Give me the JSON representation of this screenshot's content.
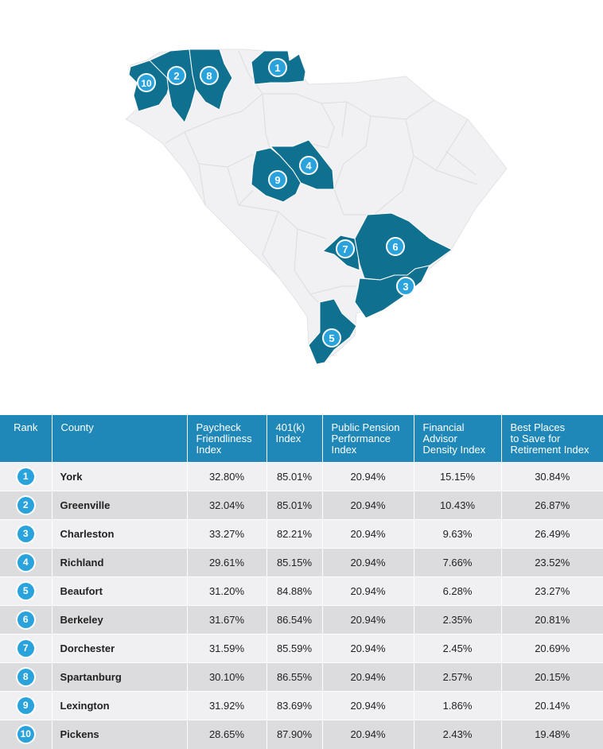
{
  "colors": {
    "state_fill": "#f1f1f3",
    "county_border": "#d9d9de",
    "highlight_fill": "#10708f",
    "badge_fill": "#2aa3dd",
    "header_bg": "#1f88b9"
  },
  "map": {
    "state": "South Carolina",
    "highlighted_counties": [
      {
        "rank": "1",
        "county": "York"
      },
      {
        "rank": "2",
        "county": "Greenville"
      },
      {
        "rank": "3",
        "county": "Charleston"
      },
      {
        "rank": "4",
        "county": "Richland"
      },
      {
        "rank": "5",
        "county": "Beaufort"
      },
      {
        "rank": "6",
        "county": "Berkeley"
      },
      {
        "rank": "7",
        "county": "Dorchester"
      },
      {
        "rank": "8",
        "county": "Spartanburg"
      },
      {
        "rank": "9",
        "county": "Lexington"
      },
      {
        "rank": "10",
        "county": "Pickens"
      }
    ]
  },
  "table": {
    "headers": [
      "Rank",
      "County",
      "Paycheck\nFriendliness\nIndex",
      "401(k)\nIndex",
      "Public Pension\nPerformance\nIndex",
      "Financial\nAdvisor\nDensity Index",
      "Best Places\nto Save for\nRetirement Index"
    ],
    "rows": [
      {
        "rank": "1",
        "county": "York",
        "paycheck": "32.80%",
        "k401": "85.01%",
        "pension": "20.94%",
        "advisor": "15.15%",
        "best": "30.84%"
      },
      {
        "rank": "2",
        "county": "Greenville",
        "paycheck": "32.04%",
        "k401": "85.01%",
        "pension": "20.94%",
        "advisor": "10.43%",
        "best": "26.87%"
      },
      {
        "rank": "3",
        "county": "Charleston",
        "paycheck": "33.27%",
        "k401": "82.21%",
        "pension": "20.94%",
        "advisor": "9.63%",
        "best": "26.49%"
      },
      {
        "rank": "4",
        "county": "Richland",
        "paycheck": "29.61%",
        "k401": "85.15%",
        "pension": "20.94%",
        "advisor": "7.66%",
        "best": "23.52%"
      },
      {
        "rank": "5",
        "county": "Beaufort",
        "paycheck": "31.20%",
        "k401": "84.88%",
        "pension": "20.94%",
        "advisor": "6.28%",
        "best": "23.27%"
      },
      {
        "rank": "6",
        "county": "Berkeley",
        "paycheck": "31.67%",
        "k401": "86.54%",
        "pension": "20.94%",
        "advisor": "2.35%",
        "best": "20.81%"
      },
      {
        "rank": "7",
        "county": "Dorchester",
        "paycheck": "31.59%",
        "k401": "85.59%",
        "pension": "20.94%",
        "advisor": "2.45%",
        "best": "20.69%"
      },
      {
        "rank": "8",
        "county": "Spartanburg",
        "paycheck": "30.10%",
        "k401": "86.55%",
        "pension": "20.94%",
        "advisor": "2.57%",
        "best": "20.15%"
      },
      {
        "rank": "9",
        "county": "Lexington",
        "paycheck": "31.92%",
        "k401": "83.69%",
        "pension": "20.94%",
        "advisor": "1.86%",
        "best": "20.14%"
      },
      {
        "rank": "10",
        "county": "Pickens",
        "paycheck": "28.65%",
        "k401": "87.90%",
        "pension": "20.94%",
        "advisor": "2.43%",
        "best": "19.48%"
      }
    ]
  }
}
